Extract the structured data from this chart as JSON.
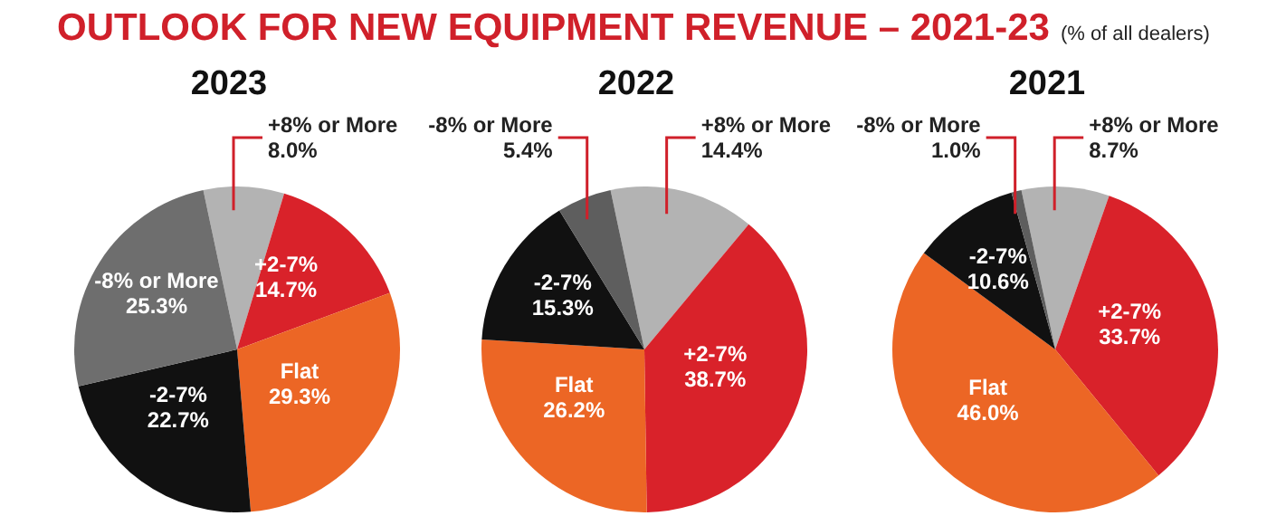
{
  "chart_data": [
    {
      "type": "other",
      "title": "OUTLOOK FOR NEW EQUIPMENT REVENUE – 2021-23",
      "subtitle": "(% of all dealers)"
    },
    {
      "type": "pie",
      "title": "2023",
      "categories": [
        "+8% or More",
        "+2-7%",
        "Flat",
        "-2-7%",
        "-8% or More"
      ],
      "values": [
        8.0,
        14.7,
        29.3,
        22.7,
        25.3
      ],
      "value_labels": [
        "8.0%",
        "14.7%",
        "29.3%",
        "22.7%",
        "25.3%"
      ],
      "colors": [
        "#b3b3b3",
        "#d9222a",
        "#ec6625",
        "#111111",
        "#6e6e6e"
      ]
    },
    {
      "type": "pie",
      "title": "2022",
      "categories": [
        "+8% or More",
        "+2-7%",
        "Flat",
        "-2-7%",
        "-8% or More"
      ],
      "values": [
        14.4,
        38.7,
        26.2,
        15.3,
        5.4
      ],
      "value_labels": [
        "14.4%",
        "38.7%",
        "26.2%",
        "15.3%",
        "5.4%"
      ],
      "colors": [
        "#b3b3b3",
        "#d9222a",
        "#ec6625",
        "#111111",
        "#5e5e5e"
      ]
    },
    {
      "type": "pie",
      "title": "2021",
      "categories": [
        "+8% or More",
        "+2-7%",
        "Flat",
        "-2-7%",
        "-8% or More"
      ],
      "values": [
        8.7,
        33.7,
        46.0,
        10.6,
        1.0
      ],
      "value_labels": [
        "8.7%",
        "33.7%",
        "46.0%",
        "10.6%",
        "1.0%"
      ],
      "colors": [
        "#b3b3b3",
        "#d9222a",
        "#ec6625",
        "#111111",
        "#5e5e5e"
      ]
    }
  ]
}
